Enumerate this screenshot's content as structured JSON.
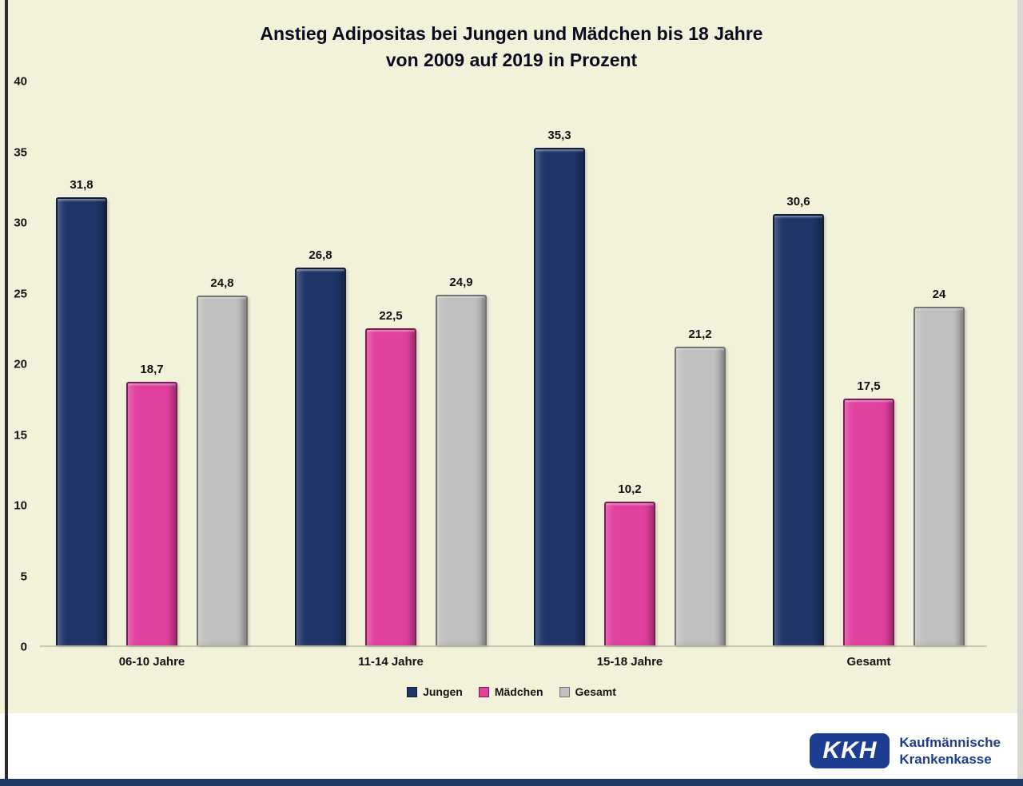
{
  "chart": {
    "title_line1": "Anstieg Adipositas bei Jungen und Mädchen bis 18 Jahre",
    "title_line2": "von 2009 auf 2019 in Prozent"
  },
  "chart_data": {
    "type": "bar",
    "title": "Anstieg Adipositas bei Jungen und Mädchen bis 18 Jahre von 2009 auf 2019 in Prozent",
    "categories": [
      "06-10 Jahre",
      "11-14 Jahre",
      "15-18 Jahre",
      "Gesamt"
    ],
    "series": [
      {
        "name": "Jungen",
        "values": [
          31.8,
          26.8,
          35.3,
          30.6
        ],
        "labels": [
          "31,8",
          "26,8",
          "35,3",
          "30,6"
        ],
        "color": "#1f3567",
        "color_border": "#0e1c3a"
      },
      {
        "name": "Mädchen",
        "values": [
          18.7,
          22.5,
          10.2,
          17.5
        ],
        "labels": [
          "18,7",
          "22,5",
          "10,2",
          "17,5"
        ],
        "color": "#e2409f",
        "color_border": "#7d1a56"
      },
      {
        "name": "Gesamt",
        "values": [
          24.8,
          24.9,
          21.2,
          24
        ],
        "labels": [
          "24,8",
          "24,9",
          "21,2",
          "24"
        ],
        "color": "#c0c0c0",
        "color_border": "#737373"
      }
    ],
    "ylim": [
      0,
      40
    ],
    "yticks": [
      0,
      5,
      10,
      15,
      20,
      25,
      30,
      35,
      40
    ],
    "grid": false,
    "legend_position": "bottom",
    "background_color": "#f2f2da"
  },
  "logo": {
    "abbr": "KKH",
    "name_line1": "Kaufmännische",
    "name_line2": "Krankenkasse",
    "brand_color": "#1d3d91"
  }
}
